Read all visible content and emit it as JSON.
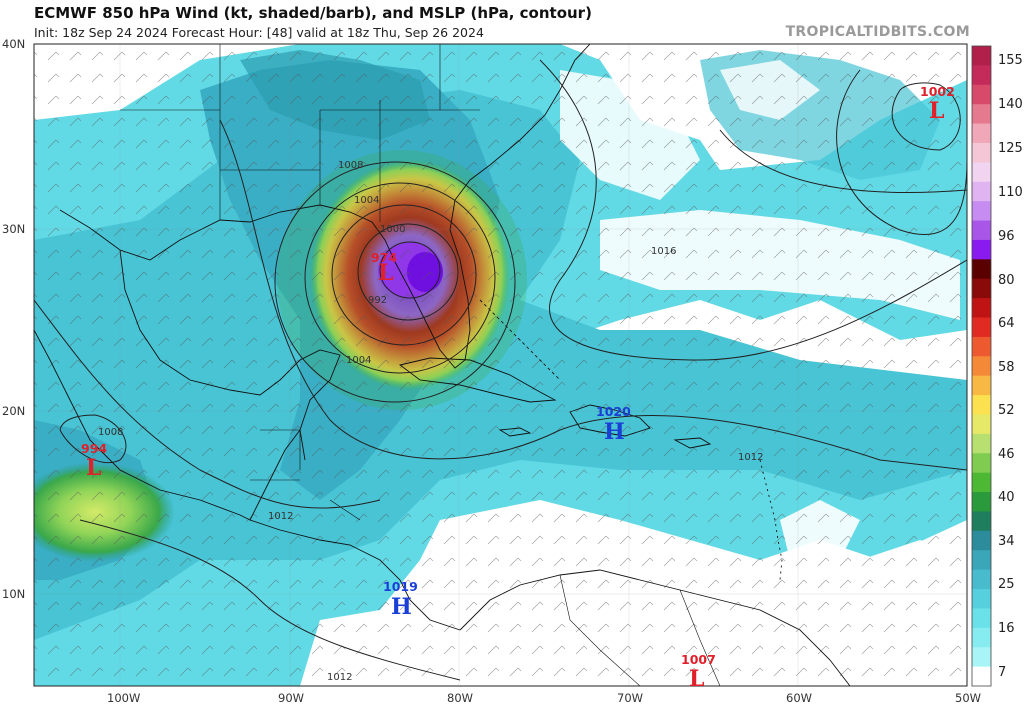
{
  "header": {
    "title": "ECMWF 850 hPa Wind (kt, shaded/barb), and MSLP (hPa, contour)",
    "subtitle": "Init: 18z Sep 24 2024   Forecast Hour: [48]   valid at 18z Thu, Sep 26 2024",
    "brand": "TROPICALTIDBITS.COM"
  },
  "map": {
    "projection": "lat-lon",
    "lon_range": [
      -105.5,
      -50
    ],
    "lat_range": [
      5,
      40
    ],
    "lat_labels": [
      "10N",
      "20N",
      "30N",
      "40N"
    ],
    "lon_labels": [
      "100W",
      "90W",
      "80W",
      "70W",
      "60W",
      "50W"
    ],
    "pressure_centers": [
      {
        "type": "L",
        "value": "974",
        "color": "#e0202a"
      },
      {
        "type": "L",
        "value": "1002",
        "color": "#e0202a"
      },
      {
        "type": "L",
        "value": "994",
        "color": "#e0202a"
      },
      {
        "type": "L",
        "value": "1007",
        "color": "#e0202a"
      },
      {
        "type": "H",
        "value": "1020",
        "color": "#1a3fd6"
      },
      {
        "type": "H",
        "value": "1019",
        "color": "#1a3fd6"
      }
    ],
    "isobar_labels": [
      "1008",
      "1004",
      "1000",
      "992",
      "1004",
      "1016",
      "1012",
      "1008",
      "1012",
      "1012"
    ]
  },
  "colorbar": {
    "unit": "kt",
    "tick_labels": [
      "155",
      "140",
      "125",
      "110",
      "96",
      "80",
      "64",
      "58",
      "52",
      "46",
      "40",
      "34",
      "25",
      "16",
      "7"
    ],
    "colors": [
      "#b0204a",
      "#c42a5a",
      "#d84a6a",
      "#e57a8f",
      "#f0a8b8",
      "#f5c6d6",
      "#f0d4f0",
      "#e0b4f0",
      "#c68cf2",
      "#a856e8",
      "#8a1bf0",
      "#5a0000",
      "#8a0a0a",
      "#c01414",
      "#e02a22",
      "#ee5a30",
      "#f48a38",
      "#f8b844",
      "#fbe050",
      "#e6e868",
      "#b8e070",
      "#80cc50",
      "#4cb834",
      "#2a9a3c",
      "#1e7e5e",
      "#2c8c9c",
      "#3aa6b8",
      "#48bccc",
      "#56d0dc",
      "#6ae0e8",
      "#86ecf0",
      "#a8f4f6",
      "#ffffff"
    ]
  }
}
